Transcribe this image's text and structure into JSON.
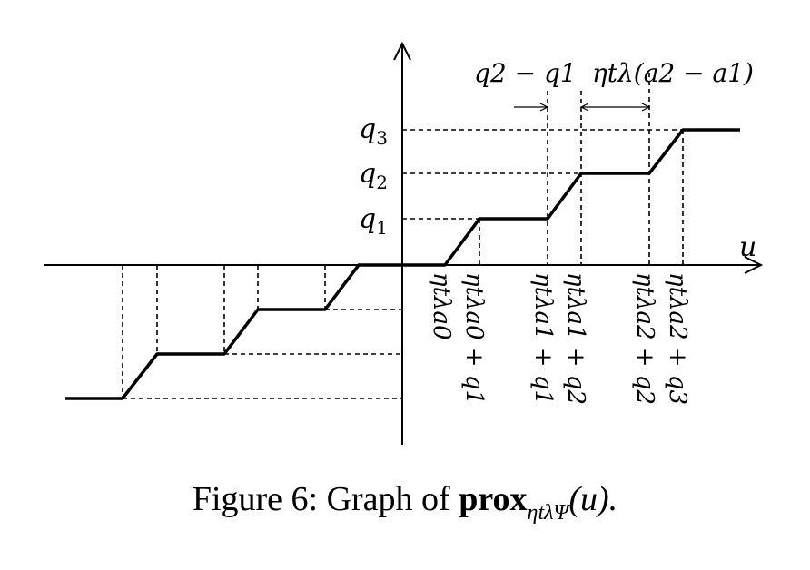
{
  "diagram": {
    "axis_u_label": "u",
    "level_labels": [
      "q",
      "q",
      "q"
    ],
    "level_indices": [
      "1",
      "2",
      "3"
    ],
    "gap_label_left": "q2 − q1",
    "gap_label_right": "ηtλ(a2 − a1)",
    "breakpoint_labels": [
      "ηtλa0",
      "ηtλa0 + q1",
      "ηtλa1 + q1",
      "ηtλa1 + q2",
      "ηtλa2 + q2",
      "ηtλa2 + q3"
    ],
    "colors": {
      "ink": "#000000",
      "background": "#ffffff"
    }
  },
  "caption": {
    "prefix": "Figure 6:  Graph of ",
    "operator": "prox",
    "subscript": "ηtλΨ",
    "argument": "(u)."
  }
}
